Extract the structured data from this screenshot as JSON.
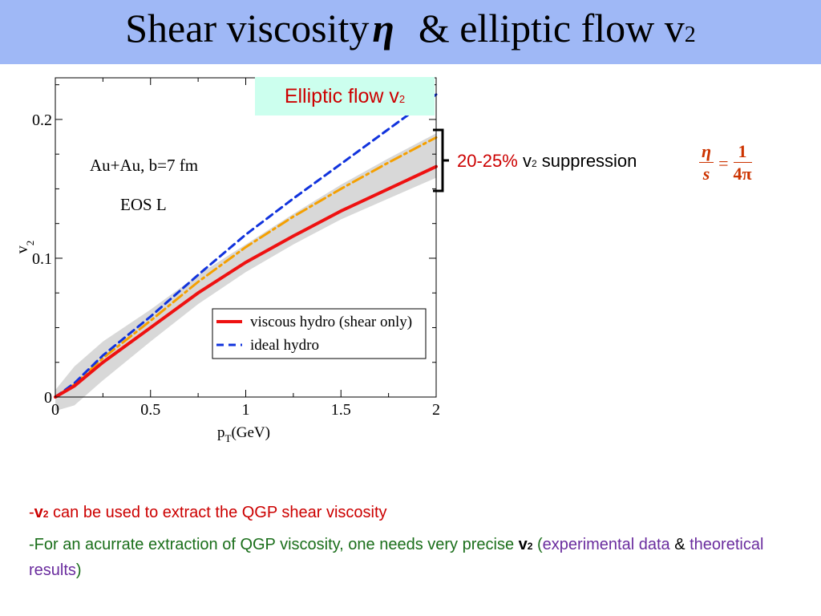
{
  "title": {
    "main": "Shear viscosity",
    "symbol": "η",
    "rest": "& elliptic flow v",
    "sub": "2"
  },
  "label_box": {
    "text": "Elliptic flow v",
    "sub": "2"
  },
  "suppression": {
    "pct": "20-25%",
    "v": "v",
    "sub": "2",
    "text": "suppression"
  },
  "formula": {
    "num1": "η",
    "den1": "s",
    "eq": "=",
    "num2": "1",
    "den2": "4π"
  },
  "bullets": [
    {
      "pre": "-",
      "v": "v",
      "sub": "2",
      "text": " can be used to extract the QGP shear viscosity"
    },
    {
      "text": "-For an acurrate extraction of QGP viscosity, one needs very precise ",
      "v": "v",
      "sub": "2",
      "open": " (",
      "p1": "experimental data",
      "amp": " & ",
      "p2": "theoretical results",
      "close": ")"
    }
  ],
  "chart_data": {
    "type": "line",
    "xlabel": "p",
    "xlabel_sub": "T",
    "xlabel_unit": "(GeV)",
    "ylabel": "v",
    "ylabel_sub": "2",
    "xlim": [
      0,
      2
    ],
    "ylim": [
      0,
      0.23
    ],
    "x_ticks": [
      0,
      0.5,
      1,
      1.5,
      2
    ],
    "x_tick_labels": [
      "0",
      "0.5",
      "1",
      "1.5",
      "2"
    ],
    "y_ticks": [
      0,
      0.1,
      0.2
    ],
    "y_tick_labels": [
      "0",
      "0.1",
      "0.2"
    ],
    "annotations": [
      "Au+Au, b=7 fm",
      "EOS L"
    ],
    "legend": "bottom-right",
    "series": [
      {
        "name": "viscous hydro (shear only)",
        "color": "#ee1111",
        "style": "solid",
        "x": [
          0,
          0.1,
          0.25,
          0.5,
          0.75,
          1.0,
          1.25,
          1.5,
          1.75,
          2.0
        ],
        "y": [
          0,
          0.008,
          0.025,
          0.05,
          0.075,
          0.097,
          0.116,
          0.134,
          0.15,
          0.166
        ]
      },
      {
        "name": "ideal hydro",
        "color": "#1133dd",
        "style": "dashed",
        "x": [
          0,
          0.1,
          0.25,
          0.5,
          0.75,
          1.0,
          1.25,
          1.5,
          1.75,
          2.0
        ],
        "y": [
          0,
          0.01,
          0.03,
          0.058,
          0.088,
          0.117,
          0.143,
          0.168,
          0.193,
          0.218
        ]
      },
      {
        "name": "",
        "color": "#f5a000",
        "style": "dashdot",
        "x": [
          0,
          0.1,
          0.25,
          0.5,
          0.75,
          1.0,
          1.25,
          1.5,
          1.75,
          2.0
        ],
        "y": [
          0,
          0.009,
          0.028,
          0.055,
          0.083,
          0.108,
          0.13,
          0.15,
          0.169,
          0.187
        ]
      }
    ],
    "band": {
      "color": "#d8d8d8",
      "x": [
        0,
        0.1,
        0.25,
        0.5,
        0.75,
        1.0,
        1.25,
        1.5,
        1.75,
        2.0
      ],
      "upper": [
        0.005,
        0.022,
        0.04,
        0.063,
        0.088,
        0.11,
        0.132,
        0.153,
        0.172,
        0.19
      ],
      "lower": [
        -0.01,
        -0.006,
        0.012,
        0.04,
        0.067,
        0.09,
        0.11,
        0.128,
        0.143,
        0.158
      ]
    }
  }
}
